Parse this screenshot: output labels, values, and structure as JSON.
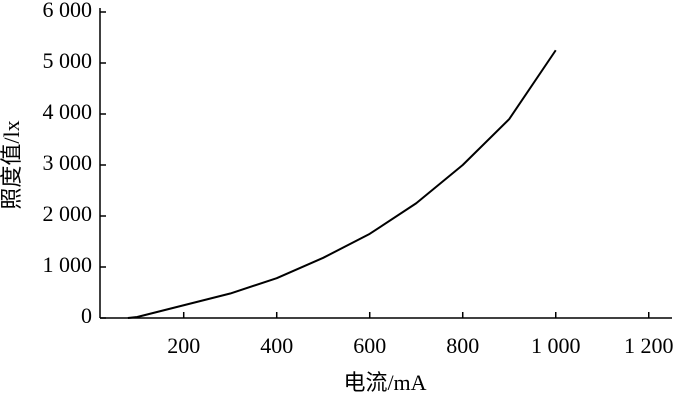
{
  "chart_data": {
    "type": "line",
    "x_label": "电流/mA",
    "y_label": "照度值/lx",
    "x": [
      80,
      100,
      200,
      300,
      400,
      500,
      600,
      700,
      800,
      900,
      1000
    ],
    "series": [
      {
        "name": "照度值",
        "color": "#000000",
        "values": [
          0,
          20,
          250,
          480,
          780,
          1180,
          1650,
          2250,
          3000,
          3900,
          5250
        ]
      }
    ],
    "xlim": [
      20,
      1250
    ],
    "xticks": [
      200,
      400,
      600,
      800,
      {
        "value": 1000,
        "label": "1 000"
      },
      {
        "value": 1200,
        "label": "1 200"
      }
    ],
    "ylim": [
      0,
      6000
    ],
    "yticks": [
      0,
      {
        "value": 1000,
        "label": "1 000"
      },
      {
        "value": 2000,
        "label": "2 000"
      },
      {
        "value": 3000,
        "label": "3 000"
      },
      {
        "value": 4000,
        "label": "4 000"
      },
      {
        "value": 5000,
        "label": "5 000"
      },
      {
        "value": 6000,
        "label": "6 000"
      }
    ]
  }
}
